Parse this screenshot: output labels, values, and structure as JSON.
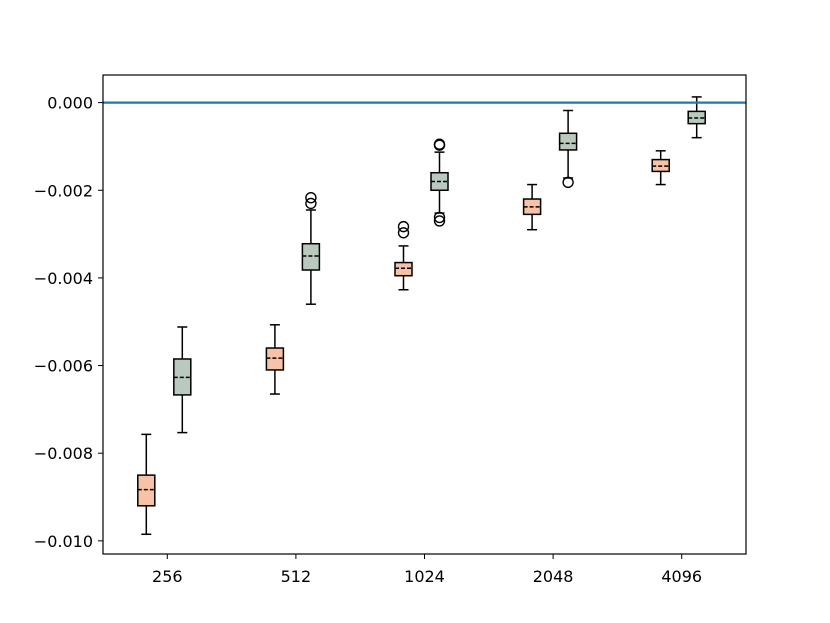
{
  "chart_data": {
    "type": "box",
    "categories": [
      "256",
      "512",
      "1024",
      "2048",
      "4096"
    ],
    "title": "",
    "xlabel": "",
    "ylabel": "",
    "ylim": [
      -0.0103,
      0.00063
    ],
    "yticks": [
      0.0,
      -0.002,
      -0.004,
      -0.006,
      -0.008,
      -0.01
    ],
    "ytick_labels": [
      "0.000",
      "−0.002",
      "−0.004",
      "−0.006",
      "−0.008",
      "−0.010"
    ],
    "reference_line": {
      "y": 0.0,
      "color": "#1f77b4"
    },
    "grid": false,
    "series": [
      {
        "color": "#f7c2a6",
        "boxes": [
          {
            "whisker_low": -0.00985,
            "q1": -0.0092,
            "median": -0.00883,
            "q3": -0.0085,
            "whisker_high": -0.00757,
            "outliers": []
          },
          {
            "whisker_low": -0.00665,
            "q1": -0.0061,
            "median": -0.00583,
            "q3": -0.0056,
            "whisker_high": -0.00507,
            "outliers": []
          },
          {
            "whisker_low": -0.00427,
            "q1": -0.00395,
            "median": -0.00378,
            "q3": -0.00365,
            "whisker_high": -0.00327,
            "outliers": [
              -0.00283,
              -0.00297
            ]
          },
          {
            "whisker_low": -0.0029,
            "q1": -0.00255,
            "median": -0.00238,
            "q3": -0.0022,
            "whisker_high": -0.00187,
            "outliers": []
          },
          {
            "whisker_low": -0.00187,
            "q1": -0.00157,
            "median": -0.00145,
            "q3": -0.0013,
            "whisker_high": -0.0011,
            "outliers": []
          }
        ]
      },
      {
        "color": "#b9c9bd",
        "boxes": [
          {
            "whisker_low": -0.00753,
            "q1": -0.00667,
            "median": -0.00627,
            "q3": -0.00585,
            "whisker_high": -0.00512,
            "outliers": []
          },
          {
            "whisker_low": -0.0046,
            "q1": -0.00382,
            "median": -0.0035,
            "q3": -0.00322,
            "whisker_high": -0.00245,
            "outliers": [
              -0.00217,
              -0.0023
            ]
          },
          {
            "whisker_low": -0.00252,
            "q1": -0.002,
            "median": -0.0018,
            "q3": -0.0016,
            "whisker_high": -0.00113,
            "outliers": [
              -0.00095,
              -0.00097,
              -0.00262,
              -0.0027
            ]
          },
          {
            "whisker_low": -0.00172,
            "q1": -0.00108,
            "median": -0.00093,
            "q3": -0.0007,
            "whisker_high": -0.00018,
            "outliers": [
              -0.00182
            ]
          },
          {
            "whisker_low": -0.0008,
            "q1": -0.00048,
            "median": -0.00035,
            "q3": -0.0002,
            "whisker_high": 0.00013,
            "outliers": []
          }
        ]
      }
    ]
  }
}
